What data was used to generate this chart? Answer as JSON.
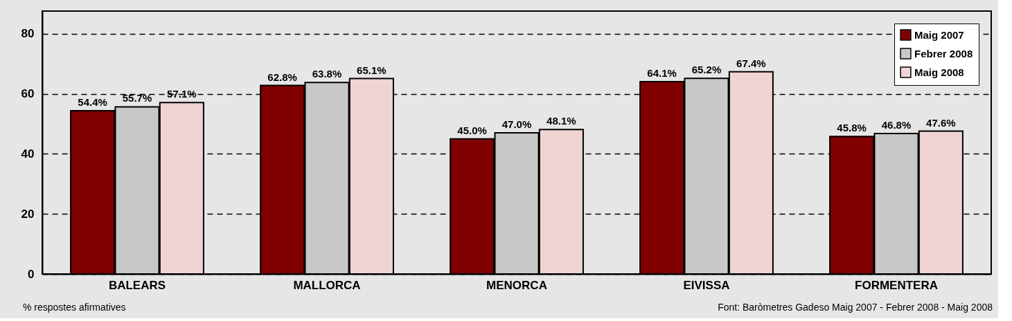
{
  "chart_data": {
    "type": "bar",
    "categories": [
      "BALEARS",
      "MALLORCA",
      "MENORCA",
      "EIVISSA",
      "FORMENTERA"
    ],
    "series": [
      {
        "name": "Maig 2007",
        "color": "#800000",
        "values": [
          54.4,
          62.8,
          45.0,
          64.1,
          45.8
        ]
      },
      {
        "name": "Febrer 2008",
        "color": "#c8c8c8",
        "values": [
          55.7,
          63.8,
          47.0,
          65.2,
          46.8
        ]
      },
      {
        "name": "Maig 2008",
        "color": "#f0d4d4",
        "values": [
          57.1,
          65.1,
          48.1,
          67.4,
          47.6
        ]
      }
    ],
    "value_labels": [
      [
        "54.4%",
        "62.8%",
        "45.0%",
        "64.1%",
        "45.8%"
      ],
      [
        "55.7%",
        "63.8%",
        "47.0%",
        "65.2%",
        "46.8%"
      ],
      [
        "57.1%",
        "65.1%",
        "48.1%",
        "67.4%",
        "47.6%"
      ]
    ],
    "ylim": [
      0,
      87.6
    ],
    "yticks": [
      0,
      20,
      40,
      60,
      80
    ],
    "grid": "y",
    "legend": "top right",
    "annotations": [
      "% respostes afirmatives",
      "Font: Baròmetres Gadeso Maig 2007 - Febrer 2008 - Maig 2008"
    ]
  }
}
